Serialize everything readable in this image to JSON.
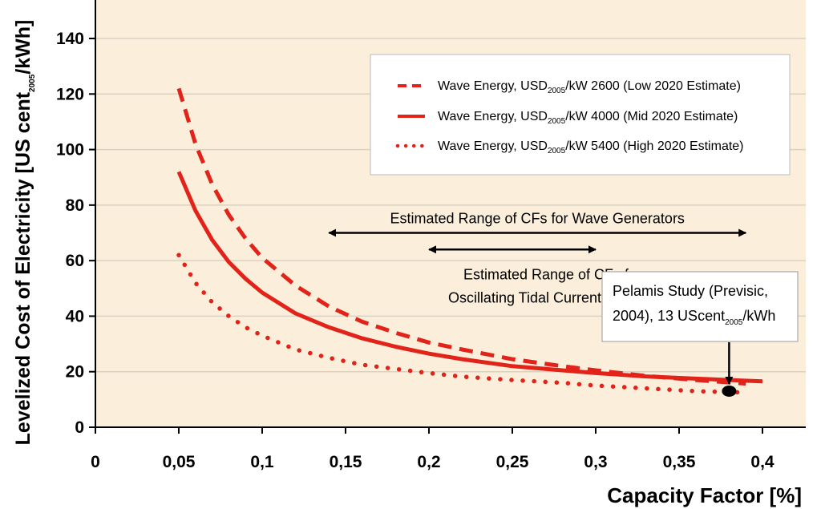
{
  "chart_data": {
    "type": "line",
    "xlabel": "Capacity Factor [%]",
    "ylabel": {
      "prefix": "Levelized Cost of Electricity [US cent",
      "sub": "2005",
      "suffix": "/kWh]"
    },
    "xlim": [
      0,
      0.4
    ],
    "ylim": [
      0,
      150
    ],
    "x_ticks": [
      "0",
      "0,05",
      "0,1",
      "0,15",
      "0,2",
      "0,25",
      "0,3",
      "0,35",
      "0,4"
    ],
    "y_ticks": [
      "0",
      "20",
      "40",
      "60",
      "80",
      "100",
      "120",
      "140"
    ],
    "grid": "horizontal",
    "background": "#fbefdc",
    "series_color": "#e2231a",
    "legend_position": "top-right",
    "series": [
      {
        "legend": {
          "pre": "Wave Energy, USD",
          "sub": "2005",
          "post": "/kW 2600 (Low 2020 Estimate)"
        },
        "style": "dashed",
        "points": [
          [
            0.05,
            122
          ],
          [
            0.06,
            102
          ],
          [
            0.07,
            87.5
          ],
          [
            0.08,
            76.5
          ],
          [
            0.09,
            68
          ],
          [
            0.1,
            61
          ],
          [
            0.12,
            51
          ],
          [
            0.14,
            43.5
          ],
          [
            0.16,
            38
          ],
          [
            0.18,
            34
          ],
          [
            0.2,
            30.5
          ],
          [
            0.22,
            28
          ],
          [
            0.25,
            24.5
          ],
          [
            0.28,
            22
          ],
          [
            0.3,
            20.5
          ],
          [
            0.33,
            18.5
          ],
          [
            0.36,
            17
          ],
          [
            0.39,
            15.7
          ]
        ]
      },
      {
        "legend": {
          "pre": "Wave Energy, USD",
          "sub": "2005",
          "post": "/kW 4000 (Mid 2020 Estimate)"
        },
        "style": "solid",
        "points": [
          [
            0.05,
            92
          ],
          [
            0.06,
            78
          ],
          [
            0.07,
            67.5
          ],
          [
            0.08,
            59.5
          ],
          [
            0.09,
            53.5
          ],
          [
            0.1,
            48.5
          ],
          [
            0.12,
            41
          ],
          [
            0.14,
            36
          ],
          [
            0.16,
            32
          ],
          [
            0.18,
            29
          ],
          [
            0.2,
            26.5
          ],
          [
            0.22,
            24.5
          ],
          [
            0.25,
            22
          ],
          [
            0.28,
            20.5
          ],
          [
            0.3,
            19.5
          ],
          [
            0.33,
            18.3
          ],
          [
            0.36,
            17.5
          ],
          [
            0.38,
            17
          ],
          [
            0.4,
            16.5
          ]
        ]
      },
      {
        "legend": {
          "pre": "Wave Energy, USD",
          "sub": "2005",
          "post": "/kW 5400 (High 2020 Estimate)"
        },
        "style": "dotted",
        "points": [
          [
            0.05,
            62
          ],
          [
            0.06,
            52
          ],
          [
            0.07,
            45
          ],
          [
            0.08,
            40
          ],
          [
            0.09,
            36
          ],
          [
            0.1,
            33
          ],
          [
            0.12,
            28
          ],
          [
            0.14,
            25
          ],
          [
            0.16,
            22.5
          ],
          [
            0.18,
            21
          ],
          [
            0.2,
            19.5
          ],
          [
            0.22,
            18.2
          ],
          [
            0.25,
            17
          ],
          [
            0.28,
            16
          ],
          [
            0.3,
            15
          ],
          [
            0.33,
            14
          ],
          [
            0.36,
            13
          ],
          [
            0.39,
            12.5
          ]
        ]
      }
    ],
    "annotations": {
      "wave_range": {
        "label": "Estimated Range of CFs for Wave Generators",
        "x_from": 0.14,
        "x_to": 0.39,
        "y": 70
      },
      "tidal_range": {
        "label_line1": "Estimated Range of CFs for",
        "label_line2": "Oscillating Tidal Current Devices",
        "x_from": 0.2,
        "x_to": 0.3,
        "y": 64
      },
      "pelamis": {
        "line1": "Pelamis Study (Previsic,",
        "line2_pre": "2004), 13 UScent",
        "line2_sub": "2005",
        "line2_post": "/kWh",
        "x": 0.38,
        "y": 13
      }
    }
  }
}
